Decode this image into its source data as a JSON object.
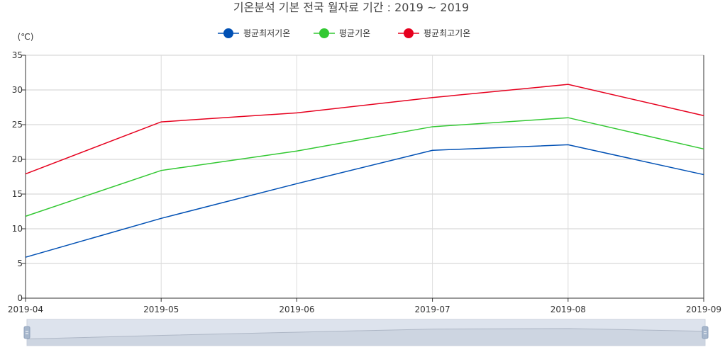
{
  "chart_data": {
    "type": "line",
    "title": "기온분석 기본 전국 월자료 기간 : 2019 ~ 2019",
    "ylabel": "(℃)",
    "categories": [
      "2019-04",
      "2019-05",
      "2019-06",
      "2019-07",
      "2019-08",
      "2019-09"
    ],
    "ylim": [
      0,
      35
    ],
    "yticks": [
      0,
      5,
      10,
      15,
      20,
      25,
      30,
      35
    ],
    "grid": true,
    "legend_position": "top",
    "series": [
      {
        "name": "평균최저기온",
        "color": "#0050b4",
        "values": [
          5.9,
          11.5,
          16.5,
          21.3,
          22.1,
          17.8
        ]
      },
      {
        "name": "평균기온",
        "color": "#32c832",
        "values": [
          11.8,
          18.4,
          21.2,
          24.7,
          26.0,
          21.5
        ]
      },
      {
        "name": "평균최고기온",
        "color": "#e6001e",
        "values": [
          17.9,
          25.4,
          26.7,
          28.9,
          30.8,
          26.3
        ]
      }
    ]
  }
}
